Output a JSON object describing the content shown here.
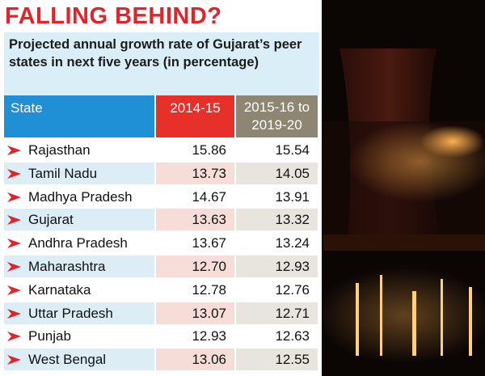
{
  "header": {
    "title": "FALLING BEHIND?"
  },
  "table": {
    "caption": "Projected annual growth rate of Gujarat’s peer states in next five years (in percentage)",
    "columns": [
      "State",
      "2014-15",
      "2015-16 to 2019-20"
    ],
    "rows": [
      [
        "Rajasthan",
        "15.86",
        "15.54"
      ],
      [
        "Tamil Nadu",
        "13.73",
        "14.05"
      ],
      [
        "Madhya Pradesh",
        "14.67",
        "13.91"
      ],
      [
        "Gujarat",
        "13.63",
        "13.32"
      ],
      [
        "Andhra Pradesh",
        "13.67",
        "13.24"
      ],
      [
        "Maharashtra",
        "12.70",
        "12.93"
      ],
      [
        "Karnataka",
        "12.78",
        "12.76"
      ],
      [
        "Uttar Pradesh",
        "13.07",
        "12.71"
      ],
      [
        "Punjab",
        "12.93",
        "12.63"
      ],
      [
        "West Bengal",
        "13.06",
        "12.55"
      ]
    ]
  }
}
